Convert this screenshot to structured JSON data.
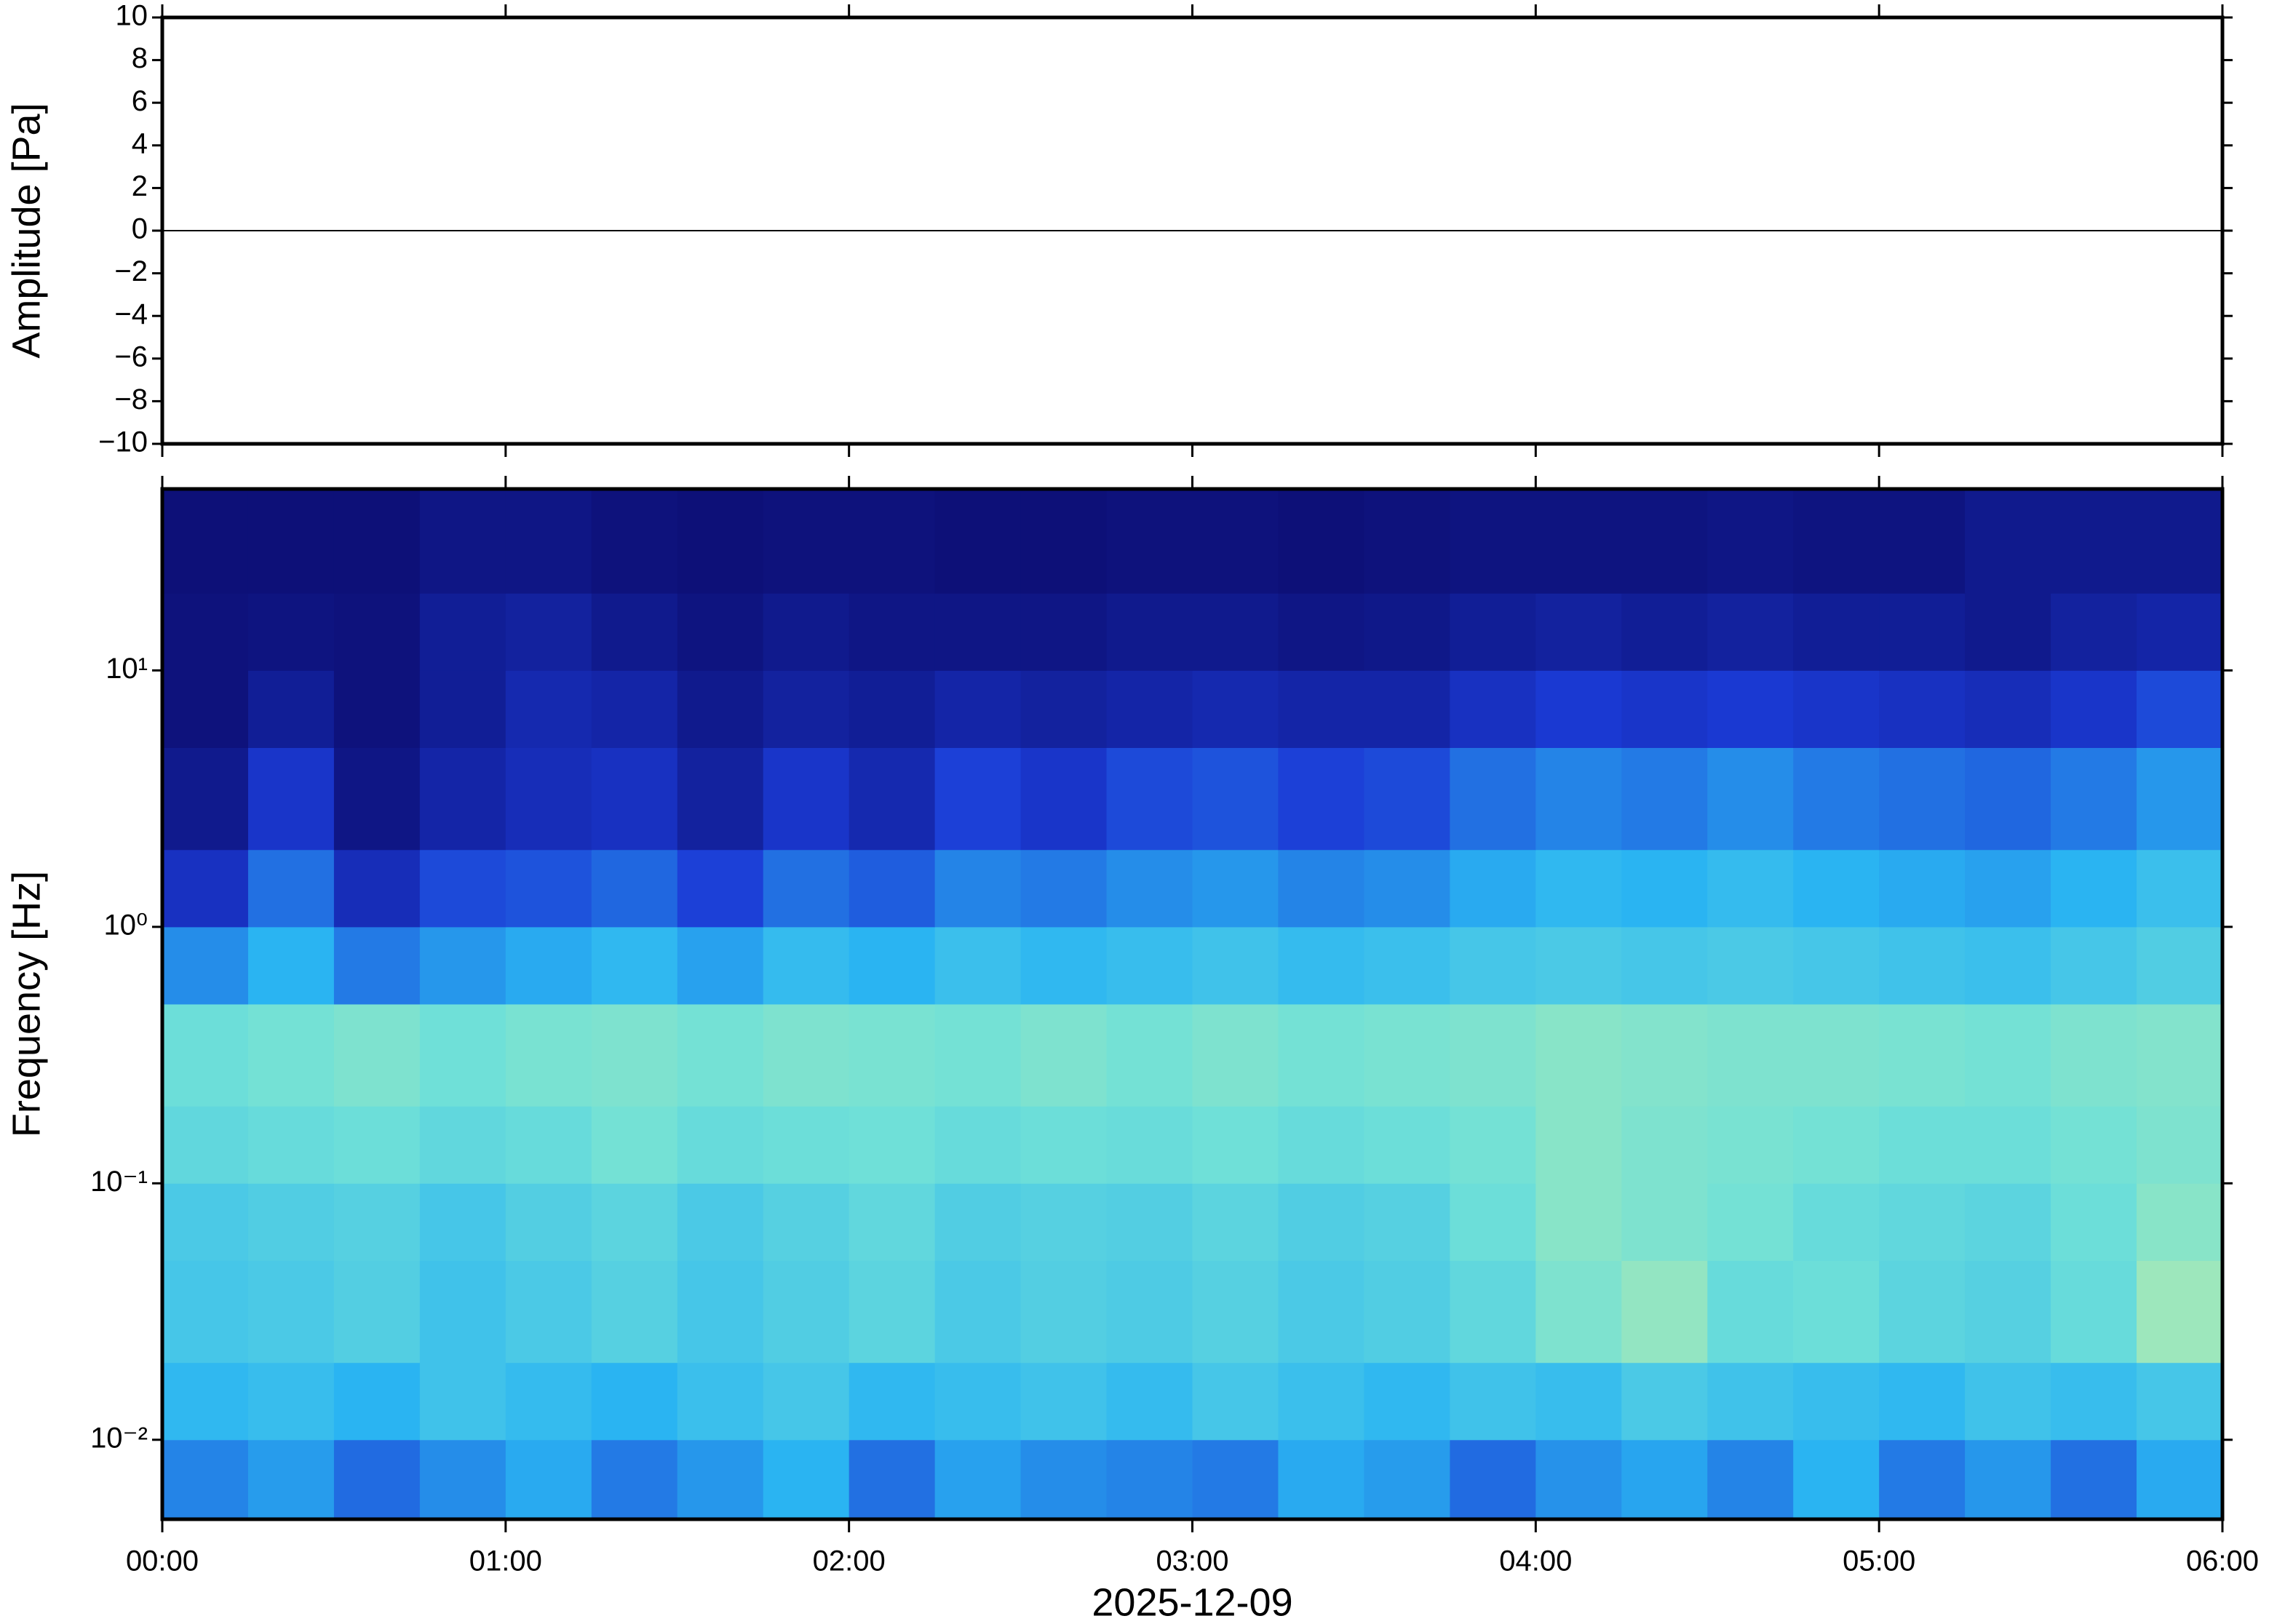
{
  "chart_data": [
    {
      "type": "line",
      "ylabel": "Amplitude [Pa]",
      "xlim": [
        0,
        360
      ],
      "ylim": [
        -10,
        10
      ],
      "yticks": [
        {
          "value": -10,
          "label": "−10"
        },
        {
          "value": -8,
          "label": "−8"
        },
        {
          "value": -6,
          "label": "−6"
        },
        {
          "value": -4,
          "label": "−4"
        },
        {
          "value": -2,
          "label": "−2"
        },
        0,
        2,
        4,
        6,
        8,
        10
      ],
      "x": [
        0,
        30,
        60,
        90,
        120,
        150,
        180,
        210,
        240,
        270,
        300,
        330,
        360
      ],
      "values": [
        0,
        0,
        0,
        0,
        0,
        0,
        0,
        0,
        0,
        0,
        0,
        0,
        0
      ],
      "color": "#000000"
    },
    {
      "type": "heatmap",
      "ylabel": "Frequency [Hz]",
      "xlabel": "2025-12-09",
      "log_y": true,
      "xlim": [
        0,
        360
      ],
      "ylim": [
        0.0049,
        51
      ],
      "xticks": [
        {
          "value": 0,
          "label": "00:00"
        },
        {
          "value": 60,
          "label": "01:00"
        },
        {
          "value": 120,
          "label": "02:00"
        },
        {
          "value": 180,
          "label": "03:00"
        },
        {
          "value": 240,
          "label": "04:00"
        },
        {
          "value": 300,
          "label": "05:00"
        },
        {
          "value": 360,
          "label": "06:00"
        }
      ],
      "yticks": [
        {
          "value": 0.01,
          "label": "10⁻²"
        },
        {
          "value": 0.1,
          "label": "10⁻¹"
        },
        {
          "value": 1,
          "label": "10⁰"
        },
        {
          "value": 10,
          "label": "10¹"
        }
      ],
      "time_bins": [
        0,
        15,
        30,
        45,
        60,
        75,
        90,
        105,
        120,
        135,
        150,
        165,
        180,
        195,
        210,
        225,
        240,
        255,
        270,
        285,
        300,
        315,
        330,
        345,
        360
      ],
      "freq_bins": [
        0.0049,
        0.01,
        0.02,
        0.05,
        0.1,
        0.2,
        0.5,
        1,
        2,
        5,
        10,
        20,
        51
      ],
      "zlim": [
        0,
        1
      ],
      "colormap": [
        "#0b0a6b",
        "#1b3bd6",
        "#2ab4f2",
        "#6fe0d8",
        "#eef38a"
      ],
      "values": [
        [
          0.4,
          0.45,
          0.35,
          0.42,
          0.48,
          0.38,
          0.44,
          0.5,
          0.36,
          0.46,
          0.42,
          0.4,
          0.38,
          0.48,
          0.45,
          0.35,
          0.43,
          0.47,
          0.4,
          0.5,
          0.38,
          0.44,
          0.36,
          0.48
        ],
        [
          0.52,
          0.55,
          0.5,
          0.58,
          0.54,
          0.5,
          0.56,
          0.6,
          0.52,
          0.55,
          0.58,
          0.54,
          0.6,
          0.56,
          0.52,
          0.58,
          0.55,
          0.62,
          0.58,
          0.55,
          0.52,
          0.58,
          0.55,
          0.6
        ],
        [
          0.6,
          0.62,
          0.65,
          0.58,
          0.62,
          0.66,
          0.6,
          0.64,
          0.68,
          0.62,
          0.65,
          0.63,
          0.66,
          0.62,
          0.64,
          0.7,
          0.78,
          0.82,
          0.72,
          0.74,
          0.68,
          0.66,
          0.72,
          0.84
        ],
        [
          0.62,
          0.64,
          0.66,
          0.6,
          0.65,
          0.68,
          0.62,
          0.66,
          0.7,
          0.64,
          0.66,
          0.65,
          0.68,
          0.64,
          0.66,
          0.74,
          0.8,
          0.78,
          0.76,
          0.72,
          0.7,
          0.68,
          0.74,
          0.8
        ],
        [
          0.7,
          0.72,
          0.74,
          0.7,
          0.72,
          0.76,
          0.72,
          0.74,
          0.75,
          0.72,
          0.74,
          0.73,
          0.75,
          0.72,
          0.74,
          0.76,
          0.8,
          0.78,
          0.77,
          0.76,
          0.74,
          0.74,
          0.76,
          0.78
        ],
        [
          0.74,
          0.76,
          0.78,
          0.75,
          0.77,
          0.78,
          0.76,
          0.78,
          0.77,
          0.76,
          0.78,
          0.76,
          0.78,
          0.76,
          0.77,
          0.78,
          0.8,
          0.79,
          0.78,
          0.78,
          0.77,
          0.76,
          0.78,
          0.79
        ],
        [
          0.42,
          0.5,
          0.38,
          0.44,
          0.48,
          0.52,
          0.46,
          0.54,
          0.5,
          0.56,
          0.52,
          0.55,
          0.58,
          0.54,
          0.56,
          0.6,
          0.62,
          0.6,
          0.62,
          0.6,
          0.58,
          0.56,
          0.6,
          0.64
        ],
        [
          0.2,
          0.36,
          0.18,
          0.28,
          0.3,
          0.34,
          0.26,
          0.36,
          0.32,
          0.4,
          0.38,
          0.42,
          0.44,
          0.4,
          0.42,
          0.48,
          0.52,
          0.5,
          0.54,
          0.5,
          0.48,
          0.46,
          0.5,
          0.56
        ],
        [
          0.08,
          0.22,
          0.06,
          0.14,
          0.18,
          0.2,
          0.12,
          0.22,
          0.16,
          0.26,
          0.22,
          0.28,
          0.3,
          0.26,
          0.28,
          0.36,
          0.4,
          0.38,
          0.42,
          0.38,
          0.36,
          0.34,
          0.38,
          0.44
        ],
        [
          0.04,
          0.1,
          0.04,
          0.1,
          0.16,
          0.14,
          0.08,
          0.12,
          0.1,
          0.14,
          0.12,
          0.14,
          0.16,
          0.14,
          0.14,
          0.2,
          0.24,
          0.22,
          0.24,
          0.22,
          0.2,
          0.18,
          0.22,
          0.28
        ],
        [
          0.04,
          0.05,
          0.04,
          0.1,
          0.12,
          0.08,
          0.05,
          0.08,
          0.06,
          0.06,
          0.06,
          0.08,
          0.08,
          0.06,
          0.07,
          0.1,
          0.12,
          0.1,
          0.12,
          0.1,
          0.1,
          0.08,
          0.12,
          0.14
        ],
        [
          0.03,
          0.03,
          0.03,
          0.06,
          0.06,
          0.04,
          0.03,
          0.04,
          0.04,
          0.03,
          0.03,
          0.04,
          0.04,
          0.03,
          0.04,
          0.05,
          0.05,
          0.05,
          0.06,
          0.05,
          0.05,
          0.08,
          0.08,
          0.08
        ]
      ]
    }
  ]
}
